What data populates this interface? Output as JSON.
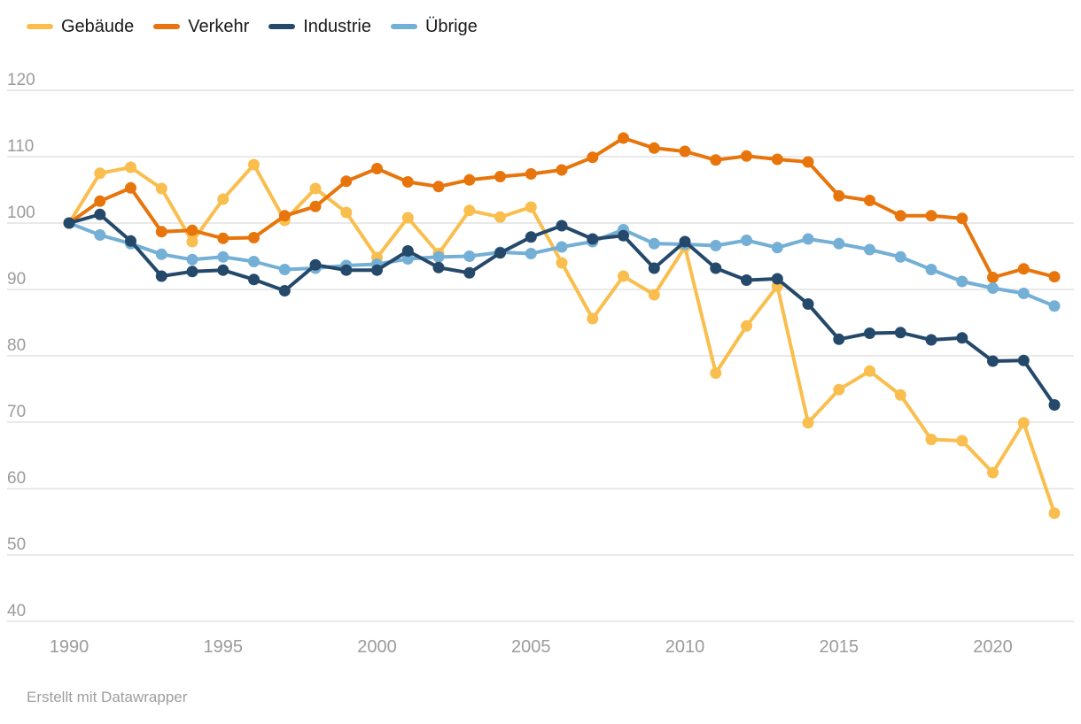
{
  "footer": {
    "text": "Erstellt mit Datawrapper"
  },
  "axes": {
    "y_tick_color": "#9b9b9b",
    "x_tick_color": "#9b9b9b",
    "gridline_color": "#e2e2e2"
  },
  "chart_data": {
    "type": "line",
    "title": "",
    "xlabel": "",
    "ylabel": "",
    "xlim": [
      1990,
      2022
    ],
    "ylim": [
      40,
      120
    ],
    "grid": "horizontal",
    "legend_position": "top-left",
    "x_ticks": [
      1990,
      1995,
      2000,
      2005,
      2010,
      2015,
      2020
    ],
    "y_ticks": [
      120,
      110,
      100,
      90,
      80,
      70,
      60,
      50,
      40
    ],
    "x": [
      1990,
      1991,
      1992,
      1993,
      1994,
      1995,
      1996,
      1997,
      1998,
      1999,
      2000,
      2001,
      2002,
      2003,
      2004,
      2005,
      2006,
      2007,
      2008,
      2009,
      2010,
      2011,
      2012,
      2013,
      2014,
      2015,
      2016,
      2017,
      2018,
      2019,
      2020,
      2021,
      2022
    ],
    "series": [
      {
        "name": "Gebäude",
        "color": "#F9BE4D",
        "values": [
          100,
          107.5,
          108.4,
          105.2,
          97.2,
          103.6,
          108.8,
          100.4,
          105.2,
          101.6,
          94.8,
          100.8,
          95.4,
          101.9,
          100.9,
          102.4,
          94,
          85.6,
          92,
          89.2,
          96.4,
          77.4,
          84.5,
          90.5,
          69.9,
          74.9,
          77.7,
          74.1,
          67.4,
          67.2,
          62.4,
          69.9,
          56.3
        ]
      },
      {
        "name": "Verkehr",
        "color": "#E8750C",
        "values": [
          100,
          103.3,
          105.3,
          98.7,
          98.9,
          97.7,
          97.8,
          101.1,
          102.5,
          106.3,
          108.2,
          106.2,
          105.5,
          106.5,
          107,
          107.4,
          108,
          109.9,
          112.8,
          111.3,
          110.8,
          109.5,
          110.1,
          109.6,
          109.2,
          104.1,
          103.4,
          101.1,
          101.1,
          100.7,
          91.8,
          93.1,
          91.9
        ]
      },
      {
        "name": "Industrie",
        "color": "#25496B",
        "values": [
          100,
          101.3,
          97.3,
          92,
          92.7,
          92.9,
          91.5,
          89.8,
          93.7,
          92.9,
          92.9,
          95.8,
          93.3,
          92.5,
          95.5,
          97.9,
          99.6,
          97.6,
          98.1,
          93.2,
          97.2,
          93.2,
          91.4,
          91.6,
          87.8,
          82.5,
          83.4,
          83.5,
          82.4,
          82.7,
          79.2,
          79.3,
          72.6
        ]
      },
      {
        "name": "Übrige",
        "color": "#74AFD6",
        "values": [
          100,
          98.2,
          96.9,
          95.3,
          94.5,
          94.9,
          94.2,
          93,
          93.2,
          93.6,
          93.8,
          94.6,
          94.9,
          95,
          95.6,
          95.4,
          96.4,
          97.2,
          99,
          96.9,
          96.8,
          96.6,
          97.4,
          96.3,
          97.6,
          96.9,
          96,
          94.9,
          93,
          91.2,
          90.2,
          89.4,
          87.5
        ]
      }
    ]
  }
}
